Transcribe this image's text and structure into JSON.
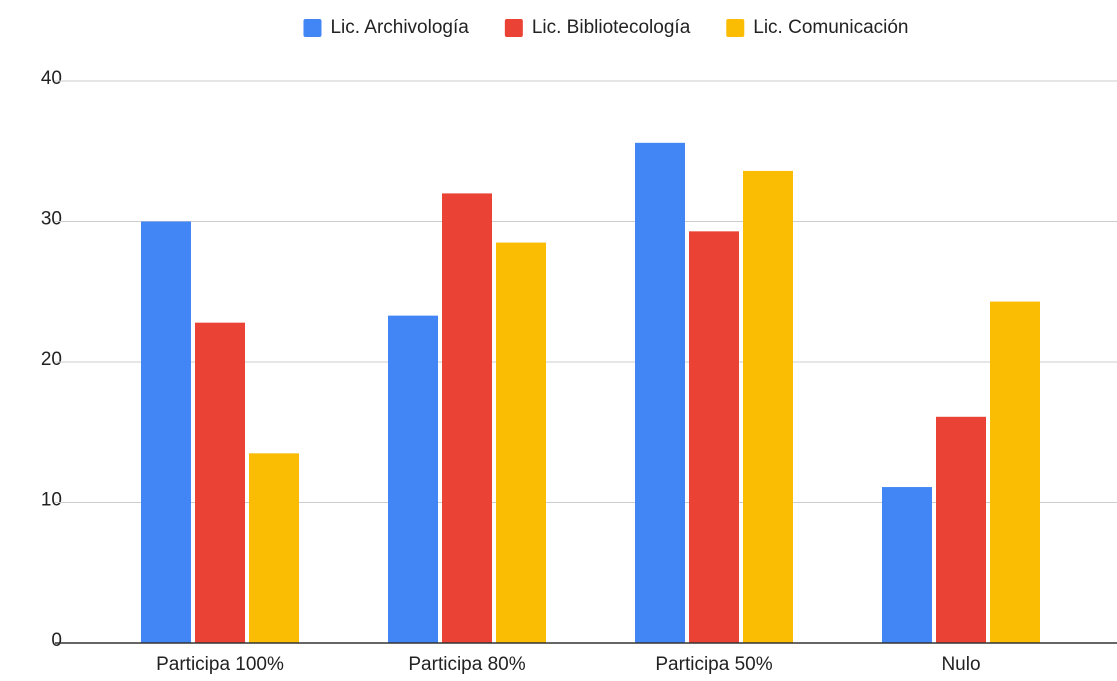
{
  "chart_data": {
    "type": "bar",
    "categories": [
      "Participa 100%",
      "Participa 80%",
      "Participa 50%",
      "Nulo"
    ],
    "series": [
      {
        "name": "Lic. Archivología",
        "color": "#4285f4",
        "values": [
          30.0,
          23.3,
          35.6,
          11.1
        ]
      },
      {
        "name": "Lic. Bibliotecología",
        "color": "#ea4335",
        "values": [
          22.8,
          32.0,
          29.3,
          16.1
        ]
      },
      {
        "name": "Lic. Comunicación",
        "color": "#fbbc04",
        "values": [
          13.5,
          28.5,
          33.6,
          24.3
        ]
      }
    ],
    "ylim": [
      0,
      40
    ],
    "yticks": [
      0,
      10,
      20,
      30,
      40
    ],
    "grid": true,
    "legend": "top"
  }
}
